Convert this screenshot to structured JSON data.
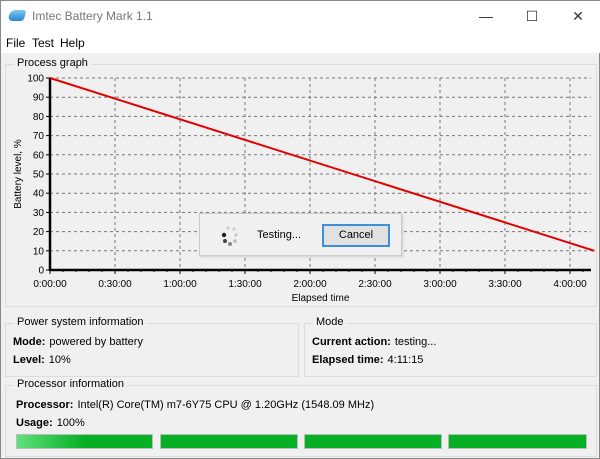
{
  "window": {
    "title": "Imtec Battery Mark 1.1",
    "minimize": "—",
    "maximize": "☐",
    "close": "✕"
  },
  "menu": [
    "File",
    "Test",
    "Help"
  ],
  "graph_group": "Process graph",
  "chart_data": {
    "type": "line",
    "xlabel": "Elapsed time",
    "ylabel": "Battery level, %",
    "xticks": [
      "0:00:00",
      "0:30:00",
      "1:00:00",
      "1:30:00",
      "2:00:00",
      "2:30:00",
      "3:00:00",
      "3:30:00",
      "4:00:00"
    ],
    "yticks": [
      0,
      10,
      20,
      30,
      40,
      50,
      60,
      70,
      80,
      90,
      100
    ],
    "ylim": [
      0,
      100
    ],
    "xlim": [
      "0:00:00",
      "4:11:15"
    ],
    "grid": true,
    "series": [
      {
        "color": "#e00000",
        "x": [
          "0:00:00",
          "4:11:15"
        ],
        "y": [
          100,
          10
        ]
      }
    ]
  },
  "dialog": {
    "status": "Testing...",
    "cancel": "Cancel"
  },
  "power": {
    "title": "Power system information",
    "mode_label": "Mode:",
    "mode": "powered by battery",
    "level_label": "Level:",
    "level": "10%"
  },
  "mode": {
    "title": "Mode",
    "action_label": "Current action:",
    "action": "testing...",
    "elapsed_label": "Elapsed time:",
    "elapsed": "4:11:15"
  },
  "processor": {
    "title": "Processor information",
    "proc_label": "Processor:",
    "proc": "Intel(R) Core(TM) m7-6Y75 CPU @ 1.20GHz  (1548.09 MHz)",
    "usage_label": "Usage:",
    "usage": "100%",
    "core_usage_percent": [
      100,
      100,
      100,
      100
    ],
    "bar_color": "#06b025"
  }
}
